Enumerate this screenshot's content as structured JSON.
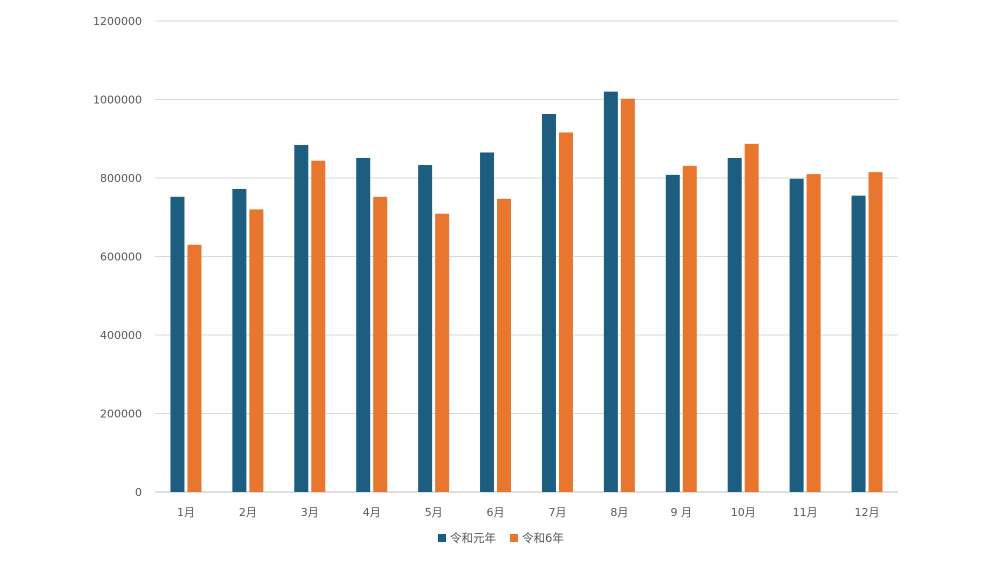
{
  "chart_data": {
    "type": "bar",
    "title": "",
    "xlabel": "",
    "ylabel": "",
    "categories": [
      "1月",
      "2月",
      "3月",
      "4月",
      "5月",
      "6月",
      "7月",
      "8月",
      "9 月",
      "10月",
      "11月",
      "12月"
    ],
    "series": [
      {
        "name": "令和元年",
        "color": "#1c5d80",
        "values": [
          752000,
          772000,
          884000,
          851000,
          833000,
          865000,
          963000,
          1020000,
          808000,
          851000,
          798000,
          755000
        ]
      },
      {
        "name": "令和6年",
        "color": "#e8762f",
        "values": [
          630000,
          720000,
          844000,
          752000,
          709000,
          747000,
          916000,
          1002000,
          831000,
          887000,
          810000,
          815000
        ]
      }
    ],
    "ylim": [
      0,
      1200000
    ],
    "yticks": [
      "0",
      "200000",
      "400000",
      "600000",
      "800000",
      "1000000",
      "1200000"
    ],
    "grid": true,
    "legend_position": "bottom"
  }
}
